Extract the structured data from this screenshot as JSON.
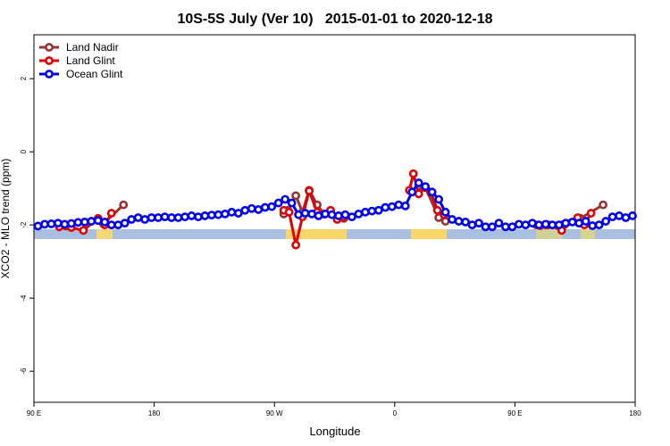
{
  "chart_data": {
    "type": "line",
    "title": "10S-5S July (Ver 10)   2015-01-01 to 2020-12-18",
    "xlabel": "Longitude",
    "ylabel": "XCO2 - MLO trend (ppm)",
    "xlim": [
      90,
      540
    ],
    "ylim": [
      -6.85,
      3.2
    ],
    "xticks": [
      {
        "value": 90,
        "label": "90 E"
      },
      180,
      {
        "value": 270,
        "label": "90 W"
      },
      {
        "value": 360,
        "label": "0"
      },
      {
        "value": 450,
        "label": "90 E"
      },
      {
        "value": 540,
        "label": "180"
      }
    ],
    "yticks": [
      2,
      0,
      -2,
      -4,
      -6
    ],
    "legend": "top-left",
    "series": [
      {
        "name": "Land Nadir",
        "color": "#993333",
        "x": [
          142,
          157,
          220,
          277,
          280,
          286,
          291,
          296,
          302,
          307,
          312,
          318,
          322,
          350,
          378,
          383,
          393,
          398,
          450,
          466,
          473,
          499,
          516
        ],
        "values": [
          -1.97,
          -1.45,
          null,
          -1.7,
          -1.6,
          -1.2,
          -1.65,
          -1.05,
          -1.45,
          -1.7,
          -1.65,
          -1.75,
          -1.82,
          null,
          -0.93,
          -0.98,
          -1.8,
          -1.9,
          null,
          -2.0,
          -2.0,
          -1.82,
          -1.45
        ]
      },
      {
        "name": "Land Glint",
        "color": "#e00000",
        "x": [
          109,
          114,
          118,
          127,
          138,
          143,
          148,
          220,
          277,
          281,
          286,
          291,
          296,
          302,
          307,
          312,
          317,
          322,
          350,
          371,
          374,
          378,
          383,
          387,
          392,
          397,
          450,
          469,
          475,
          485,
          497,
          502,
          507
        ],
        "values": [
          -2.05,
          -2.03,
          -2.07,
          -2.15,
          -1.82,
          -2.0,
          -1.68,
          null,
          -1.6,
          -1.65,
          -2.55,
          -1.78,
          -1.07,
          -1.65,
          -1.7,
          -1.6,
          -1.85,
          -1.78,
          null,
          -1.05,
          -0.6,
          -1.15,
          -0.97,
          -1.1,
          -1.6,
          -1.72,
          null,
          -2.02,
          -2.0,
          -2.15,
          -1.8,
          -2.0,
          -1.68
        ]
      },
      {
        "name": "Ocean Glint",
        "color": "#0000ee",
        "x": [
          93,
          98,
          103,
          108,
          113,
          118,
          123,
          128,
          133,
          138,
          143,
          148,
          153,
          158,
          163,
          168,
          173,
          178,
          183,
          188,
          193,
          198,
          203,
          208,
          213,
          218,
          223,
          228,
          233,
          238,
          243,
          248,
          253,
          258,
          263,
          268,
          273,
          278,
          283,
          288,
          293,
          298,
          303,
          308,
          313,
          318,
          323,
          328,
          333,
          338,
          343,
          348,
          353,
          358,
          363,
          368,
          373,
          378,
          383,
          388,
          393,
          398,
          403,
          408,
          413,
          418,
          423,
          428,
          433,
          438,
          443,
          448,
          453,
          458,
          463,
          468,
          473,
          478,
          483,
          488,
          493,
          498,
          503,
          508,
          513,
          518,
          523,
          528,
          533,
          538
        ],
        "values": [
          -2.03,
          -1.98,
          -1.97,
          -1.95,
          -1.98,
          -1.96,
          -1.93,
          -1.92,
          -1.9,
          -1.88,
          -1.92,
          -2.0,
          -2.0,
          -1.95,
          -1.85,
          -1.8,
          -1.85,
          -1.8,
          -1.8,
          -1.78,
          -1.8,
          -1.8,
          -1.78,
          -1.75,
          -1.78,
          -1.75,
          -1.73,
          -1.72,
          -1.7,
          -1.65,
          -1.68,
          -1.6,
          -1.55,
          -1.58,
          -1.52,
          -1.5,
          -1.4,
          -1.3,
          -1.4,
          -1.72,
          -1.68,
          -1.7,
          -1.75,
          -1.7,
          -1.72,
          -1.75,
          -1.72,
          -1.78,
          -1.7,
          -1.65,
          -1.62,
          -1.6,
          -1.52,
          -1.5,
          -1.45,
          -1.48,
          -1.1,
          -0.85,
          -0.95,
          -1.1,
          -1.3,
          -1.65,
          -1.85,
          -1.9,
          -1.92,
          -2.0,
          -1.95,
          -2.05,
          -2.05,
          -1.95,
          -2.05,
          -2.05,
          -1.98,
          -2.0,
          -1.95,
          -2.0,
          -1.98,
          -2.0,
          -2.0,
          -1.95,
          -1.92,
          -1.95,
          -1.9,
          -2.02,
          -2.0,
          -1.9,
          -1.78,
          -1.75,
          -1.8,
          -1.75
        ]
      }
    ]
  }
}
